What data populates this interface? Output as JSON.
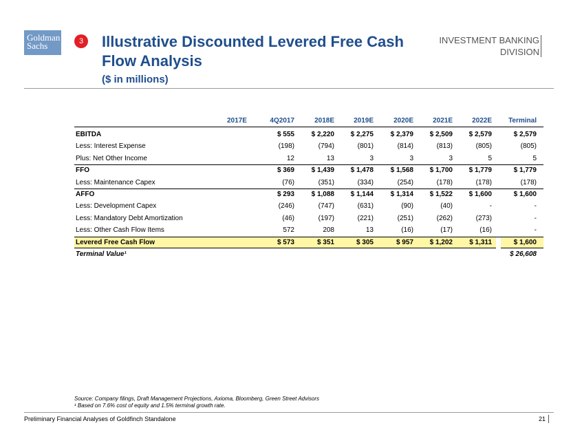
{
  "header": {
    "logo": [
      "Goldman",
      "Sachs"
    ],
    "section_number": "3",
    "title": [
      "Illustrative Discounted Levered Free Cash",
      "Flow Analysis"
    ],
    "subtitle": "($ in millions)",
    "division": [
      "INVESTMENT BANKING",
      "DIVISION"
    ]
  },
  "table": {
    "group_header": "2017E",
    "columns": [
      "4Q2017",
      "2018E",
      "2019E",
      "2020E",
      "2021E",
      "2022E",
      "Terminal"
    ],
    "rows": [
      {
        "label": "EBITDA",
        "cells": [
          "$ 555",
          "$ 2,220",
          "$ 2,275",
          "$ 2,379",
          "$ 2,509",
          "$ 2,579",
          "$ 2,579"
        ]
      },
      {
        "label": "Less: Interest Expense",
        "cells": [
          "(198)",
          "(794)",
          "(801)",
          "(814)",
          "(813)",
          "(805)",
          "(805)"
        ]
      },
      {
        "label": "Plus: Net Other Income",
        "cells": [
          "12",
          "13",
          "3",
          "3",
          "3",
          "5",
          "5"
        ]
      },
      {
        "label": "FFO",
        "cells": [
          "$ 369",
          "$ 1,439",
          "$ 1,478",
          "$ 1,568",
          "$ 1,700",
          "$ 1,779",
          "$ 1,779"
        ]
      },
      {
        "label": "Less: Maintenance Capex",
        "cells": [
          "(76)",
          "(351)",
          "(334)",
          "(254)",
          "(178)",
          "(178)",
          "(178)"
        ]
      },
      {
        "label": "AFFO",
        "cells": [
          "$ 293",
          "$ 1,088",
          "$ 1,144",
          "$ 1,314",
          "$ 1,522",
          "$ 1,600",
          "$ 1,600"
        ]
      },
      {
        "label": "Less: Development Capex",
        "cells": [
          "(246)",
          "(747)",
          "(631)",
          "(90)",
          "(40)",
          "-",
          "-"
        ]
      },
      {
        "label": "Less: Mandatory Debt Amortization",
        "cells": [
          "(46)",
          "(197)",
          "(221)",
          "(251)",
          "(262)",
          "(273)",
          "-"
        ]
      },
      {
        "label": "Less: Other Cash Flow Items",
        "cells": [
          "572",
          "208",
          "13",
          "(16)",
          "(17)",
          "(16)",
          "-"
        ]
      },
      {
        "label": "Levered Free Cash Flow",
        "cells": [
          "$ 573",
          "$ 351",
          "$ 305",
          "$ 957",
          "$ 1,202",
          "$ 1,311",
          "$ 1,600"
        ]
      },
      {
        "label": "Terminal Value¹",
        "cells": [
          null,
          null,
          null,
          null,
          null,
          null,
          "$ 26,608"
        ]
      }
    ]
  },
  "footnotes": [
    "Source: Company filings, Draft Management Projections, Axioma, Bloomberg, Green Street Advisors",
    "¹ Based on 7.6% cost of equity and 1.5% terminal growth rate."
  ],
  "footer": {
    "text": "Preliminary Financial Analyses of Goldfinch Standalone",
    "page": "21"
  }
}
